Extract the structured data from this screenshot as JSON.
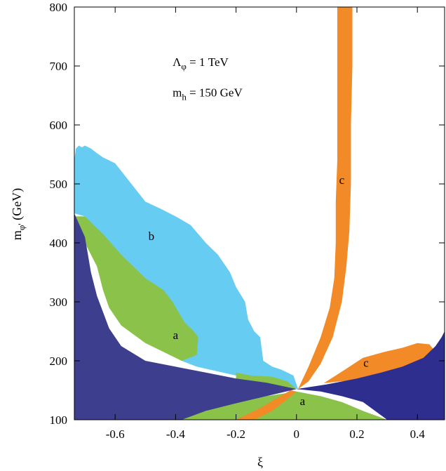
{
  "chart_data": {
    "type": "area",
    "title": "",
    "xlabel": "ξ",
    "ylabel": "m",
    "ylabel_sub": "φ'",
    "ylabel_suffix": " (GeV)",
    "xlim": [
      -0.735,
      0.49
    ],
    "ylim": [
      100,
      800
    ],
    "x_ticks": [
      {
        "value": -0.6,
        "label": "-0.6"
      },
      {
        "value": -0.4,
        "label": "-0.4"
      },
      {
        "value": -0.2,
        "label": "-0.2"
      },
      {
        "value": 0,
        "label": "0"
      },
      {
        "value": 0.2,
        "label": "0.2"
      },
      {
        "value": 0.4,
        "label": "0.4"
      }
    ],
    "y_ticks": [
      {
        "value": 100,
        "label": "100"
      },
      {
        "value": 200,
        "label": "200"
      },
      {
        "value": 300,
        "label": "300"
      },
      {
        "value": 400,
        "label": "400"
      },
      {
        "value": 500,
        "label": "500"
      },
      {
        "value": 600,
        "label": "600"
      },
      {
        "value": 700,
        "label": "700"
      },
      {
        "value": 800,
        "label": "800"
      }
    ],
    "annotations": [
      {
        "main": "Λ",
        "sub": "φ",
        "rest": " = 1 TeV",
        "x": -0.41,
        "y": 700
      },
      {
        "main": "m",
        "sub": "h",
        "rest": " = 150 GeV",
        "x": -0.41,
        "y": 648
      }
    ],
    "regions": [
      {
        "name": "b-region",
        "color": "#66ccf2",
        "label": "",
        "points": [
          [
            -0.735,
            450
          ],
          [
            -0.735,
            540
          ],
          [
            -0.73,
            560
          ],
          [
            -0.72,
            565
          ],
          [
            -0.71,
            562
          ],
          [
            -0.7,
            565
          ],
          [
            -0.68,
            560
          ],
          [
            -0.66,
            552
          ],
          [
            -0.64,
            545
          ],
          [
            -0.6,
            535
          ],
          [
            -0.5,
            470
          ],
          [
            -0.45,
            458
          ],
          [
            -0.4,
            445
          ],
          [
            -0.35,
            430
          ],
          [
            -0.3,
            400
          ],
          [
            -0.26,
            380
          ],
          [
            -0.22,
            350
          ],
          [
            -0.2,
            325
          ],
          [
            -0.17,
            300
          ],
          [
            -0.16,
            270
          ],
          [
            -0.14,
            250
          ],
          [
            -0.12,
            240
          ],
          [
            -0.11,
            200
          ],
          [
            -0.08,
            190
          ],
          [
            -0.05,
            185
          ],
          [
            -0.01,
            175
          ],
          [
            0.005,
            152
          ],
          [
            -0.05,
            160
          ],
          [
            -0.2,
            175
          ],
          [
            -0.33,
            190
          ],
          [
            -0.38,
            200
          ],
          [
            -0.45,
            230
          ],
          [
            -0.55,
            300
          ],
          [
            -0.62,
            380
          ],
          [
            -0.66,
            420
          ],
          [
            -0.7,
            445
          ]
        ]
      },
      {
        "name": "a-region-upper",
        "color": "#8bc34a",
        "label": "a",
        "label_pos": [
          -0.4,
          237
        ],
        "points": [
          [
            -0.74,
            452
          ],
          [
            -0.73,
            445
          ],
          [
            -0.7,
            445
          ],
          [
            -0.64,
            415
          ],
          [
            -0.58,
            380
          ],
          [
            -0.5,
            340
          ],
          [
            -0.44,
            320
          ],
          [
            -0.41,
            300
          ],
          [
            -0.37,
            265
          ],
          [
            -0.34,
            250
          ],
          [
            -0.325,
            240
          ],
          [
            -0.33,
            210
          ],
          [
            -0.38,
            200
          ],
          [
            -0.5,
            230
          ],
          [
            -0.58,
            260
          ],
          [
            -0.62,
            290
          ],
          [
            -0.64,
            320
          ],
          [
            -0.66,
            360
          ],
          [
            -0.7,
            400
          ]
        ]
      },
      {
        "name": "a-region-center",
        "color": "#8bc34a",
        "label": "",
        "points": [
          [
            -0.2,
            180
          ],
          [
            -0.15,
            175
          ],
          [
            -0.08,
            173
          ],
          [
            -0.03,
            165
          ],
          [
            0.0,
            152
          ],
          [
            -0.05,
            155
          ],
          [
            -0.1,
            158
          ],
          [
            -0.17,
            163
          ],
          [
            -0.2,
            168
          ]
        ]
      },
      {
        "name": "a-region-lower",
        "color": "#8bc34a",
        "label": "a",
        "label_pos": [
          0.02,
          125
        ],
        "points": [
          [
            0.0,
            148
          ],
          [
            0.08,
            140
          ],
          [
            0.15,
            130
          ],
          [
            0.22,
            115
          ],
          [
            0.3,
            100
          ],
          [
            -0.4,
            100
          ],
          [
            -0.3,
            115
          ],
          [
            -0.2,
            130
          ],
          [
            -0.1,
            140
          ]
        ]
      },
      {
        "name": "c-region-lower",
        "color": "#f28a28",
        "label": "",
        "points": [
          [
            -0.2,
            100
          ],
          [
            -0.14,
            100
          ],
          [
            -0.08,
            115
          ],
          [
            -0.03,
            135
          ],
          [
            0.0,
            148
          ],
          [
            -0.02,
            150
          ],
          [
            -0.07,
            135
          ],
          [
            -0.12,
            120
          ]
        ]
      },
      {
        "name": "c-region-right",
        "color": "#f28a28",
        "label": "c",
        "label_pos": [
          0.23,
          190
        ],
        "points": [
          [
            0.09,
            162
          ],
          [
            0.13,
            175
          ],
          [
            0.16,
            185
          ],
          [
            0.22,
            205
          ],
          [
            0.29,
            215
          ],
          [
            0.35,
            222
          ],
          [
            0.4,
            230
          ],
          [
            0.44,
            228
          ],
          [
            0.46,
            215
          ],
          [
            0.42,
            200
          ],
          [
            0.36,
            190
          ],
          [
            0.3,
            175
          ],
          [
            0.22,
            170
          ],
          [
            0.16,
            166
          ]
        ]
      },
      {
        "name": "c-region-vertical",
        "color": "#f28a28",
        "label": "c",
        "label_pos": [
          0.15,
          500
        ],
        "points": [
          [
            0.005,
            152
          ],
          [
            0.04,
            190
          ],
          [
            0.08,
            240
          ],
          [
            0.11,
            290
          ],
          [
            0.125,
            340
          ],
          [
            0.13,
            400
          ],
          [
            0.13,
            470
          ],
          [
            0.135,
            540
          ],
          [
            0.135,
            620
          ],
          [
            0.135,
            700
          ],
          [
            0.135,
            800
          ],
          [
            0.185,
            800
          ],
          [
            0.185,
            700
          ],
          [
            0.18,
            600
          ],
          [
            0.18,
            500
          ],
          [
            0.175,
            420
          ],
          [
            0.165,
            360
          ],
          [
            0.15,
            300
          ],
          [
            0.12,
            240
          ],
          [
            0.08,
            195
          ],
          [
            0.04,
            165
          ]
        ]
      },
      {
        "name": "dark-region-left",
        "color": "#3d3f8e",
        "label": "",
        "points": [
          [
            -0.735,
            100
          ],
          [
            -0.735,
            450
          ],
          [
            -0.7,
            410
          ],
          [
            -0.68,
            350
          ],
          [
            -0.66,
            310
          ],
          [
            -0.62,
            255
          ],
          [
            -0.58,
            225
          ],
          [
            -0.5,
            200
          ],
          [
            -0.4,
            190
          ],
          [
            -0.3,
            180
          ],
          [
            -0.2,
            170
          ],
          [
            -0.1,
            163
          ],
          [
            0.0,
            152
          ],
          [
            -0.1,
            140
          ],
          [
            -0.2,
            128
          ],
          [
            -0.3,
            115
          ],
          [
            -0.38,
            100
          ]
        ]
      },
      {
        "name": "dark-region-right",
        "color": "#2e2e8f",
        "label": "",
        "points": [
          [
            0.0,
            152
          ],
          [
            0.08,
            148
          ],
          [
            0.15,
            140
          ],
          [
            0.22,
            130
          ],
          [
            0.3,
            100
          ],
          [
            0.49,
            100
          ],
          [
            0.49,
            250
          ],
          [
            0.48,
            240
          ],
          [
            0.46,
            225
          ],
          [
            0.42,
            205
          ],
          [
            0.35,
            190
          ],
          [
            0.28,
            180
          ],
          [
            0.2,
            170
          ],
          [
            0.1,
            160
          ]
        ]
      }
    ],
    "extra_labels": [
      {
        "text": "b",
        "x": -0.48,
        "y": 405
      }
    ],
    "grid": false
  }
}
